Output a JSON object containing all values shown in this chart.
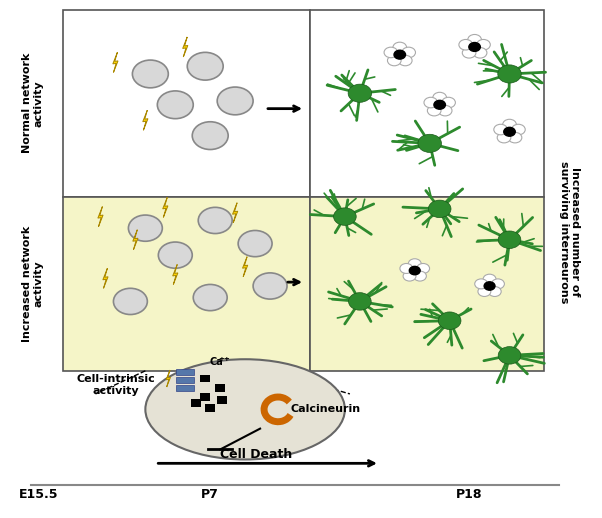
{
  "fig_width": 6.02,
  "fig_height": 5.18,
  "bg_color": "#ffffff",
  "yellow_bg": "#f5f5c8",
  "grid_color": "#555555",
  "label_top_row": "Normal network\nactivity",
  "label_bottom_row": "Increased network\nactivity",
  "right_label": "Increased number of\nsurviving interneurons",
  "cell_death_label": "Cell Death",
  "cell_intrinsic_label": "Cell-intrinsic\nactivity",
  "calcineurin_label": "Calcineurin",
  "ca_label": "Ca",
  "timeline_labels": [
    "E15.5",
    "P7",
    "P18"
  ],
  "green_color": "#2d8a2d",
  "bolt_color": "#FFD700",
  "cell_color": "#d0d0d0",
  "soma_color": "#e0ddd0",
  "blue_channel": "#5577aa",
  "orange_calcineurin": "#cc6600"
}
